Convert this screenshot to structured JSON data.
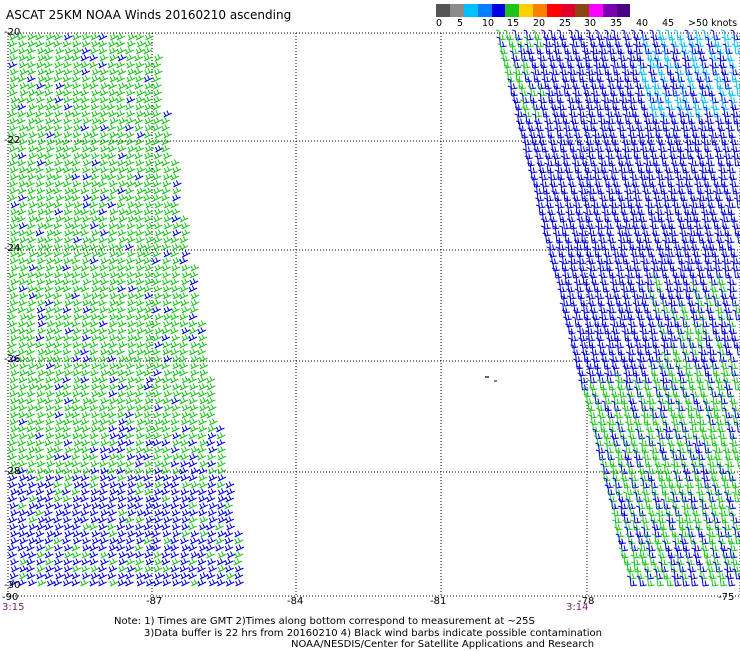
{
  "title": "ASCAT 25KM NOAA Winds 20160210 ascending",
  "legend": {
    "colors": [
      "#555555",
      "#8c8c8c",
      "#00bfff",
      "#0080ff",
      "#0000e0",
      "#1ec41e",
      "#ffd200",
      "#ff8000",
      "#ff0000",
      "#e0002a",
      "#8b4513",
      "#ff00ff",
      "#7a00b0",
      "#4b0082"
    ],
    "labels": [
      "0",
      "5",
      "10",
      "15",
      "20",
      "25",
      "30",
      "35",
      "40",
      "45",
      ">50 knots"
    ]
  },
  "axes": {
    "x_ticks": [
      "-90",
      "-87",
      "-84",
      "-81",
      "-78",
      "-75"
    ],
    "y_ticks": [
      "-20",
      "-22",
      "-24",
      "-26",
      "-28",
      "-30"
    ]
  },
  "pass_times": [
    "3:15",
    "3:14"
  ],
  "note": {
    "line1": "Note: 1) Times are GMT 2)Times along bottom correspond to measurement at ~25S",
    "line2": "3)Data buffer is 22 hrs from 20160210 4) Black wind barbs indicate possible contamination",
    "line3": "NOAA/NESDIS/Center for Satellite Applications and Research"
  },
  "swaths": [
    {
      "name": "west",
      "colors": {
        "low": "#1ec41e",
        "high": "#0000e0"
      }
    },
    {
      "name": "east",
      "colors": {
        "low": "#0000e0",
        "mid": "#1ec41e",
        "high": "#00bfff"
      }
    }
  ]
}
